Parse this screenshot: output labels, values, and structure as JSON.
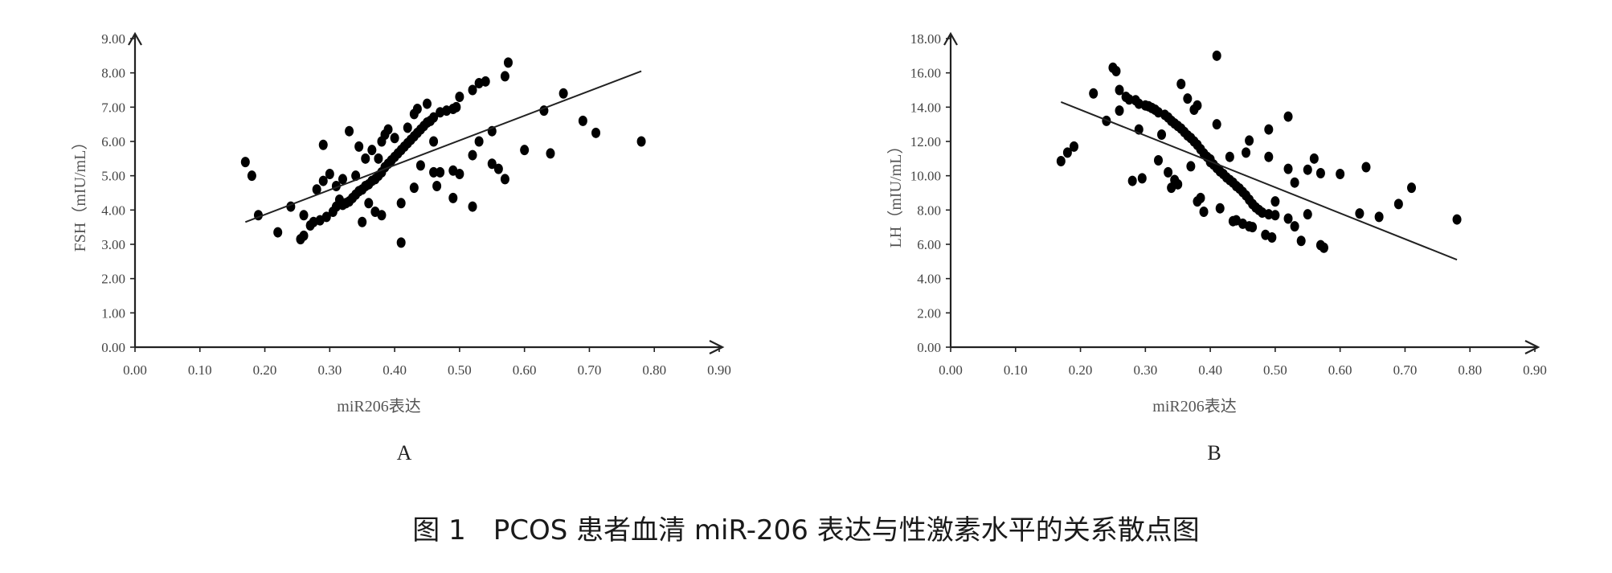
{
  "caption": "图 1　PCOS 患者血清 miR-206 表达与性激素水平的关系散点图",
  "chart_data": [
    {
      "type": "scatter",
      "panel_label": "A",
      "xlabel": "miR206表达",
      "ylabel": "FSH（mIU/mL）",
      "xlim": [
        0,
        0.9
      ],
      "ylim": [
        0,
        9
      ],
      "xticks": [
        "0.00",
        "0.10",
        "0.20",
        "0.30",
        "0.40",
        "0.50",
        "0.60",
        "0.70",
        "0.80",
        "0.90"
      ],
      "yticks": [
        "0.00",
        "1.00",
        "2.00",
        "3.00",
        "4.00",
        "5.00",
        "6.00",
        "7.00",
        "8.00",
        "9.00"
      ],
      "trendline": [
        [
          0.17,
          3.65
        ],
        [
          0.78,
          8.05
        ]
      ],
      "points": [
        [
          0.17,
          5.4
        ],
        [
          0.18,
          5.0
        ],
        [
          0.19,
          3.85
        ],
        [
          0.22,
          3.35
        ],
        [
          0.24,
          4.1
        ],
        [
          0.255,
          3.15
        ],
        [
          0.26,
          3.25
        ],
        [
          0.26,
          3.85
        ],
        [
          0.27,
          3.55
        ],
        [
          0.275,
          3.65
        ],
        [
          0.28,
          4.6
        ],
        [
          0.285,
          3.7
        ],
        [
          0.29,
          5.9
        ],
        [
          0.29,
          4.85
        ],
        [
          0.295,
          3.8
        ],
        [
          0.3,
          5.05
        ],
        [
          0.305,
          3.95
        ],
        [
          0.31,
          4.7
        ],
        [
          0.31,
          4.1
        ],
        [
          0.315,
          4.3
        ],
        [
          0.32,
          4.9
        ],
        [
          0.32,
          4.15
        ],
        [
          0.325,
          4.2
        ],
        [
          0.33,
          6.3
        ],
        [
          0.33,
          4.25
        ],
        [
          0.335,
          4.35
        ],
        [
          0.34,
          5.0
        ],
        [
          0.34,
          4.45
        ],
        [
          0.345,
          5.85
        ],
        [
          0.345,
          4.55
        ],
        [
          0.35,
          3.65
        ],
        [
          0.35,
          4.6
        ],
        [
          0.355,
          5.5
        ],
        [
          0.355,
          4.7
        ],
        [
          0.36,
          4.2
        ],
        [
          0.36,
          4.75
        ],
        [
          0.365,
          4.85
        ],
        [
          0.365,
          5.75
        ],
        [
          0.37,
          3.95
        ],
        [
          0.37,
          4.9
        ],
        [
          0.375,
          5.0
        ],
        [
          0.375,
          5.5
        ],
        [
          0.38,
          3.85
        ],
        [
          0.38,
          5.1
        ],
        [
          0.38,
          6.0
        ],
        [
          0.385,
          5.25
        ],
        [
          0.385,
          6.2
        ],
        [
          0.39,
          5.35
        ],
        [
          0.39,
          6.35
        ],
        [
          0.395,
          5.45
        ],
        [
          0.4,
          5.55
        ],
        [
          0.4,
          6.1
        ],
        [
          0.405,
          5.65
        ],
        [
          0.41,
          3.05
        ],
        [
          0.41,
          4.2
        ],
        [
          0.41,
          5.75
        ],
        [
          0.415,
          5.85
        ],
        [
          0.42,
          5.95
        ],
        [
          0.42,
          6.4
        ],
        [
          0.425,
          6.05
        ],
        [
          0.43,
          6.15
        ],
        [
          0.43,
          6.8
        ],
        [
          0.43,
          4.65
        ],
        [
          0.435,
          6.25
        ],
        [
          0.435,
          6.95
        ],
        [
          0.44,
          5.3
        ],
        [
          0.44,
          6.35
        ],
        [
          0.445,
          6.45
        ],
        [
          0.45,
          7.1
        ],
        [
          0.45,
          6.55
        ],
        [
          0.455,
          6.6
        ],
        [
          0.46,
          6.0
        ],
        [
          0.46,
          6.7
        ],
        [
          0.46,
          5.1
        ],
        [
          0.465,
          4.7
        ],
        [
          0.47,
          5.1
        ],
        [
          0.47,
          6.85
        ],
        [
          0.48,
          6.9
        ],
        [
          0.49,
          4.35
        ],
        [
          0.49,
          5.15
        ],
        [
          0.49,
          6.95
        ],
        [
          0.495,
          7.0
        ],
        [
          0.5,
          7.3
        ],
        [
          0.5,
          5.05
        ],
        [
          0.52,
          4.1
        ],
        [
          0.52,
          5.6
        ],
        [
          0.52,
          7.5
        ],
        [
          0.53,
          6.0
        ],
        [
          0.53,
          7.7
        ],
        [
          0.54,
          7.75
        ],
        [
          0.55,
          5.35
        ],
        [
          0.55,
          6.3
        ],
        [
          0.56,
          5.2
        ],
        [
          0.57,
          4.9
        ],
        [
          0.57,
          7.9
        ],
        [
          0.575,
          8.3
        ],
        [
          0.6,
          5.75
        ],
        [
          0.63,
          6.9
        ],
        [
          0.64,
          5.65
        ],
        [
          0.66,
          7.4
        ],
        [
          0.69,
          6.6
        ],
        [
          0.71,
          6.25
        ],
        [
          0.78,
          6.0
        ]
      ]
    },
    {
      "type": "scatter",
      "panel_label": "B",
      "xlabel": "miR206表达",
      "ylabel": "LH（mIU/mL）",
      "xlim": [
        0,
        0.9
      ],
      "ylim": [
        0,
        18
      ],
      "xticks": [
        "0.00",
        "0.10",
        "0.20",
        "0.30",
        "0.40",
        "0.50",
        "0.60",
        "0.70",
        "0.80",
        "0.90"
      ],
      "yticks": [
        "0.00",
        "2.00",
        "4.00",
        "6.00",
        "8.00",
        "10.00",
        "12.00",
        "14.00",
        "16.00",
        "18.00"
      ],
      "trendline": [
        [
          0.17,
          14.3
        ],
        [
          0.78,
          5.1
        ]
      ],
      "points": [
        [
          0.17,
          10.85
        ],
        [
          0.18,
          11.35
        ],
        [
          0.19,
          11.7
        ],
        [
          0.22,
          14.8
        ],
        [
          0.24,
          13.2
        ],
        [
          0.25,
          16.3
        ],
        [
          0.255,
          16.1
        ],
        [
          0.26,
          15.0
        ],
        [
          0.26,
          13.8
        ],
        [
          0.27,
          14.6
        ],
        [
          0.275,
          14.45
        ],
        [
          0.28,
          9.7
        ],
        [
          0.285,
          14.4
        ],
        [
          0.29,
          12.7
        ],
        [
          0.29,
          14.2
        ],
        [
          0.295,
          9.85
        ],
        [
          0.3,
          14.1
        ],
        [
          0.305,
          14.05
        ],
        [
          0.31,
          13.95
        ],
        [
          0.315,
          13.85
        ],
        [
          0.32,
          10.9
        ],
        [
          0.32,
          13.7
        ],
        [
          0.325,
          12.4
        ],
        [
          0.33,
          13.55
        ],
        [
          0.335,
          10.2
        ],
        [
          0.335,
          13.4
        ],
        [
          0.34,
          9.3
        ],
        [
          0.34,
          13.2
        ],
        [
          0.345,
          9.75
        ],
        [
          0.345,
          13.05
        ],
        [
          0.35,
          9.5
        ],
        [
          0.35,
          12.9
        ],
        [
          0.355,
          15.35
        ],
        [
          0.355,
          12.75
        ],
        [
          0.36,
          12.55
        ],
        [
          0.365,
          14.5
        ],
        [
          0.365,
          12.35
        ],
        [
          0.37,
          10.55
        ],
        [
          0.37,
          12.2
        ],
        [
          0.375,
          13.85
        ],
        [
          0.375,
          12.0
        ],
        [
          0.38,
          14.1
        ],
        [
          0.38,
          11.8
        ],
        [
          0.38,
          8.5
        ],
        [
          0.385,
          11.55
        ],
        [
          0.385,
          8.7
        ],
        [
          0.39,
          11.3
        ],
        [
          0.39,
          7.9
        ],
        [
          0.395,
          11.1
        ],
        [
          0.4,
          10.95
        ],
        [
          0.4,
          10.8
        ],
        [
          0.405,
          10.65
        ],
        [
          0.41,
          17.0
        ],
        [
          0.41,
          13.0
        ],
        [
          0.41,
          10.45
        ],
        [
          0.415,
          8.1
        ],
        [
          0.415,
          10.25
        ],
        [
          0.42,
          10.1
        ],
        [
          0.425,
          9.9
        ],
        [
          0.43,
          9.75
        ],
        [
          0.43,
          11.1
        ],
        [
          0.435,
          9.6
        ],
        [
          0.435,
          7.35
        ],
        [
          0.44,
          9.4
        ],
        [
          0.44,
          7.4
        ],
        [
          0.445,
          9.25
        ],
        [
          0.45,
          7.2
        ],
        [
          0.45,
          9.05
        ],
        [
          0.455,
          11.35
        ],
        [
          0.455,
          8.85
        ],
        [
          0.46,
          7.05
        ],
        [
          0.46,
          8.6
        ],
        [
          0.46,
          12.05
        ],
        [
          0.465,
          7.0
        ],
        [
          0.465,
          8.35
        ],
        [
          0.47,
          8.15
        ],
        [
          0.475,
          8.0
        ],
        [
          0.48,
          7.85
        ],
        [
          0.485,
          6.55
        ],
        [
          0.49,
          7.75
        ],
        [
          0.49,
          11.1
        ],
        [
          0.49,
          12.7
        ],
        [
          0.495,
          6.4
        ],
        [
          0.5,
          7.7
        ],
        [
          0.5,
          8.5
        ],
        [
          0.52,
          7.5
        ],
        [
          0.52,
          10.4
        ],
        [
          0.52,
          13.45
        ],
        [
          0.53,
          7.05
        ],
        [
          0.53,
          9.6
        ],
        [
          0.54,
          6.2
        ],
        [
          0.55,
          10.35
        ],
        [
          0.55,
          7.75
        ],
        [
          0.56,
          11.0
        ],
        [
          0.57,
          5.95
        ],
        [
          0.57,
          10.15
        ],
        [
          0.575,
          5.8
        ],
        [
          0.6,
          10.1
        ],
        [
          0.63,
          7.8
        ],
        [
          0.64,
          10.5
        ],
        [
          0.66,
          7.6
        ],
        [
          0.69,
          8.35
        ],
        [
          0.71,
          9.3
        ],
        [
          0.78,
          7.45
        ]
      ]
    }
  ]
}
